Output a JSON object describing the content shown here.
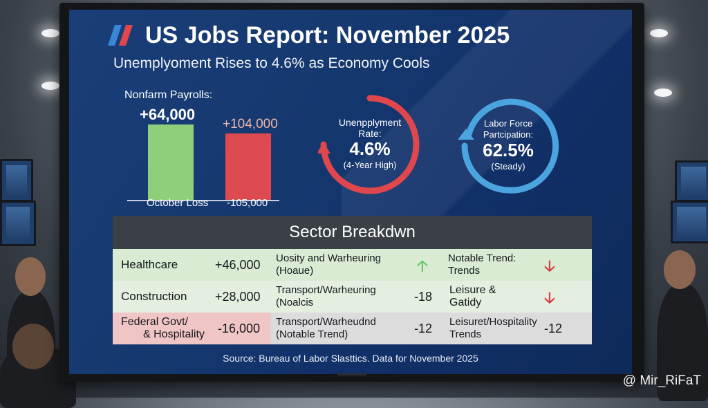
{
  "header": {
    "title": "US Jobs Report: November 2025",
    "subtitle": "Unemplyoment Rises to 4.6% as Economy Cools"
  },
  "payrolls": {
    "label": "Nonfarm Payrolls:",
    "value_primary": "+64,000",
    "value_secondary": "+104,000",
    "caption_left": "October Loss",
    "caption_right": "-105,000"
  },
  "unemployment": {
    "label_line1": "Unenpplyment",
    "label_line2": "Rate:",
    "value": "4.6%",
    "note": "(4-Year High)"
  },
  "participation": {
    "label_line1": "Labor Force",
    "label_line2": "Partcipation:",
    "value": "62.5%",
    "note": "(Steady)"
  },
  "sectors": {
    "heading": "Sector Breakdwn",
    "rows": [
      {
        "name": "Healthcare",
        "value": "+46,000",
        "mid_line1": "Uosity and Warheuring",
        "mid_line2": "(Hoaue)",
        "mid_value": "",
        "right_line1": "Notable Trend:",
        "right_line2": "Trends",
        "right_value": ""
      },
      {
        "name": "Construction",
        "value": "+28,000",
        "mid_line1": "Transport/Warheuring",
        "mid_line2": "(Noalcis",
        "mid_value": "-18",
        "right_line1": "Leisure &",
        "right_line2": "Gatidy",
        "right_value": ""
      },
      {
        "name_line1": "Federal Govt/",
        "name_line2": "& Hospitality",
        "value": "-16,000",
        "mid_line1": "Transport/Warheudnd",
        "mid_line2": "(Notable Trend)",
        "mid_value": "-12",
        "right_line1": "Leisuret/Hospitality",
        "right_line2": "Trends",
        "right_value": "-12"
      }
    ]
  },
  "footer": {
    "source": "Source: Bureau of Labor Slasttics. Data for November 2025"
  },
  "watermark": "@ Mir_RiFaT",
  "colors": {
    "green": "#8fcf79",
    "red": "#dd4a4f",
    "blue_ring": "#4aa4e0",
    "red_ring": "#e0474c",
    "row_green": "#d9ecd3",
    "row_red": "#f0c5c5",
    "row_gray": "#dcdcdc"
  },
  "icons": [
    "up-arrow-icon",
    "down-arrow-icon",
    "slash-logo-icon"
  ]
}
